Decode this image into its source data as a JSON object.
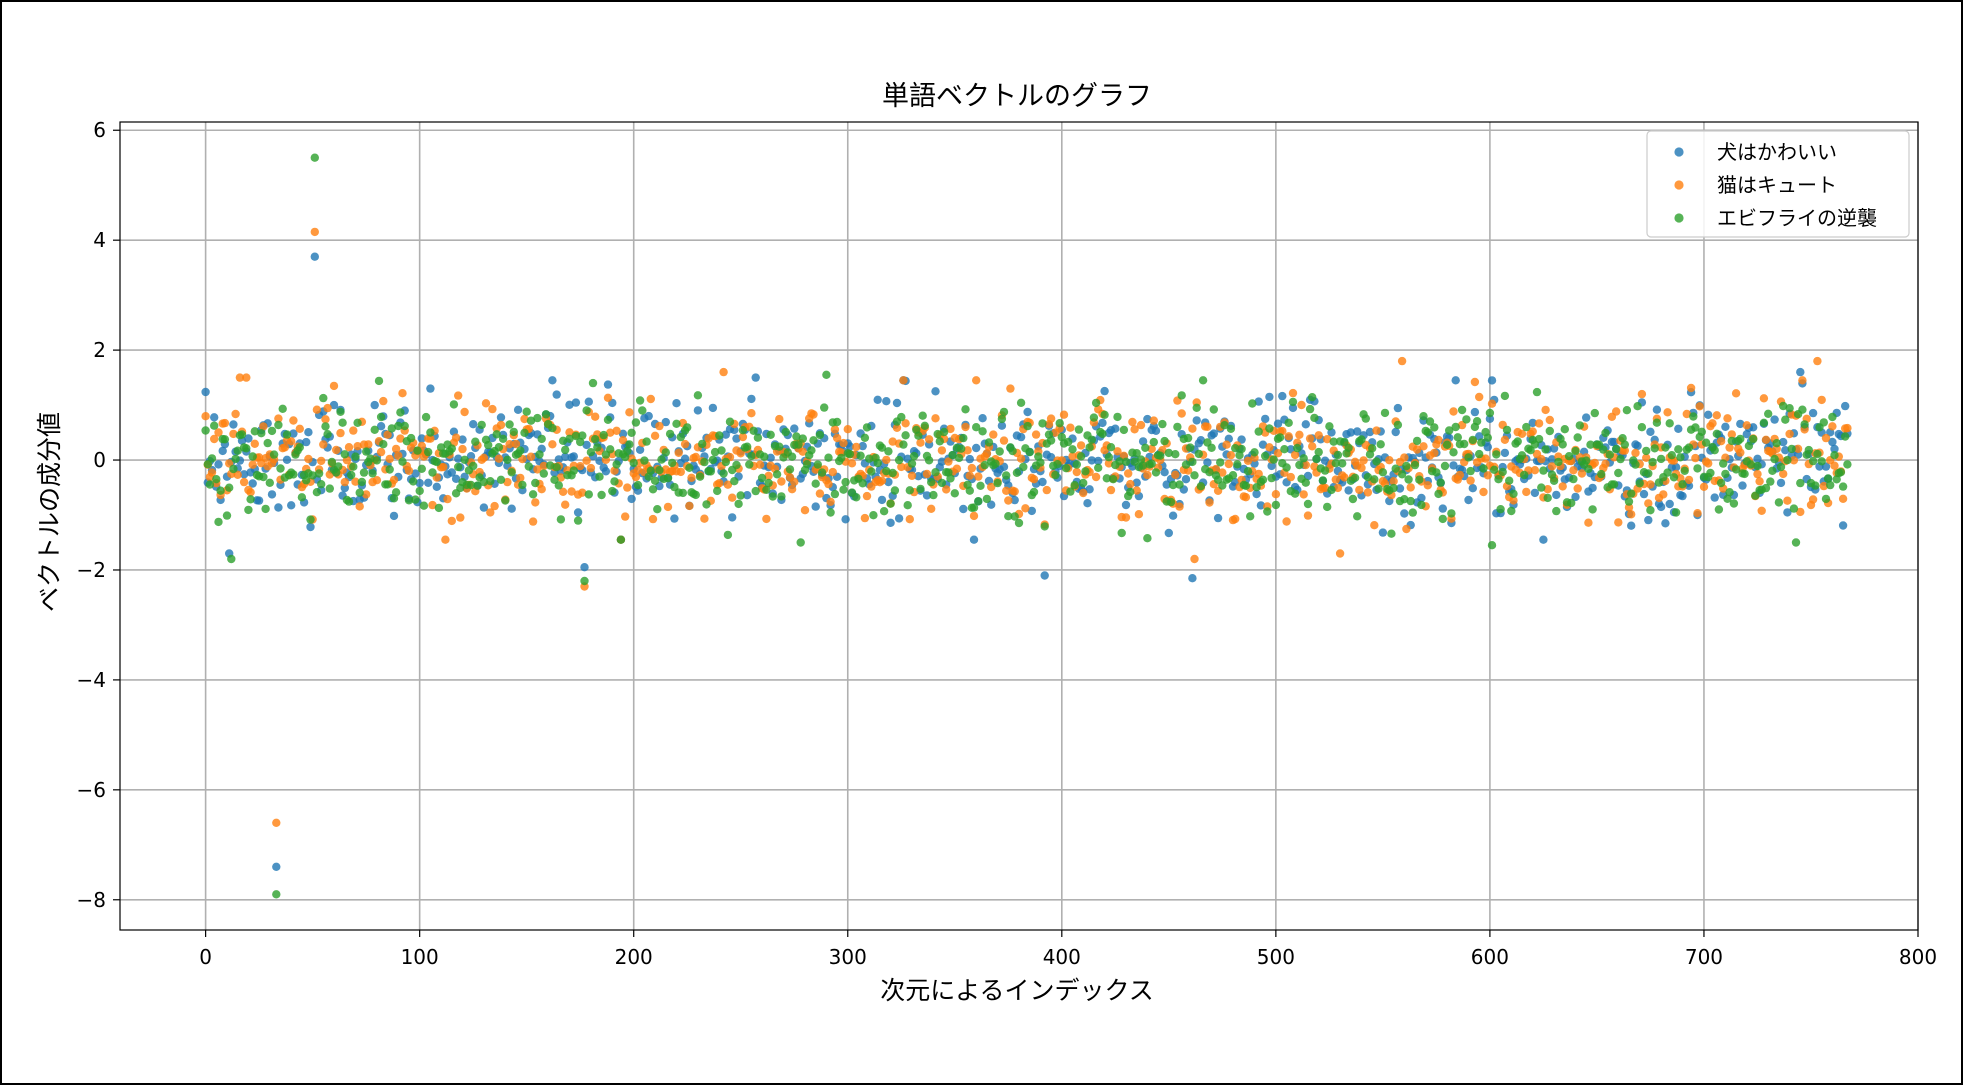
{
  "chart_data": {
    "type": "scatter",
    "title": "単語ベクトルのグラフ",
    "xlabel": "次元によるインデックス",
    "ylabel": "ベクトルの成分値",
    "xlim": [
      -40,
      800
    ],
    "ylim": [
      -8.55,
      6.15
    ],
    "xticks": [
      0,
      100,
      200,
      300,
      400,
      500,
      600,
      700,
      800
    ],
    "yticks": [
      -8,
      -6,
      -4,
      -2,
      0,
      2,
      4,
      6
    ],
    "grid": true,
    "legend_position": "top-right",
    "n_points_per_series": 768,
    "series": [
      {
        "name": "犬はかわいい",
        "color": "#1f77b4",
        "notable_points": [
          [
            33,
            -7.4
          ],
          [
            51,
            3.7
          ],
          [
            11,
            -1.7
          ],
          [
            177,
            -1.95
          ],
          [
            392,
            -2.1
          ],
          [
            461,
            -2.15
          ],
          [
            257,
            1.5
          ],
          [
            584,
            1.45
          ],
          [
            745,
            1.6
          ],
          [
            105,
            1.3
          ]
        ]
      },
      {
        "name": "猫はキュート",
        "color": "#ff7f0e",
        "notable_points": [
          [
            33,
            -6.6
          ],
          [
            51,
            4.15
          ],
          [
            242,
            1.6
          ],
          [
            559,
            1.8
          ],
          [
            753,
            1.8
          ],
          [
            177,
            -2.3
          ],
          [
            462,
            -1.8
          ],
          [
            16,
            1.5
          ],
          [
            19,
            1.5
          ],
          [
            530,
            -1.7
          ]
        ]
      },
      {
        "name": "エビフライの逆襲",
        "color": "#2ca02c",
        "notable_points": [
          [
            33,
            -7.9
          ],
          [
            51,
            5.5
          ],
          [
            290,
            1.55
          ],
          [
            181,
            1.4
          ],
          [
            12,
            -1.8
          ],
          [
            177,
            -2.2
          ],
          [
            601,
            -1.55
          ],
          [
            743,
            -1.5
          ],
          [
            278,
            -1.5
          ],
          [
            466,
            1.45
          ]
        ]
      }
    ]
  }
}
